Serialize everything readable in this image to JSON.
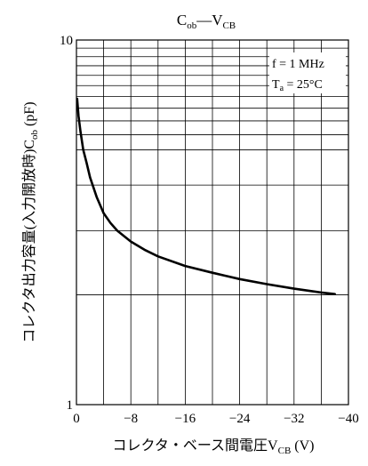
{
  "chart_data": {
    "type": "line",
    "title": {
      "main": "C",
      "main_sub": "ob",
      "sep": "—",
      "second": "V",
      "second_sub": "CB"
    },
    "xlabel": {
      "text": "コレクタ・ベース間電圧",
      "var": "V",
      "var_sub": "CB",
      "unit": "(V)"
    },
    "ylabel": {
      "text": "コレクタ出力容量(入力開放時)",
      "var": "C",
      "var_sub": "ob",
      "unit": "(pF)"
    },
    "annotation": {
      "line1": "f = 1 MHz",
      "line2_var": "T",
      "line2_sub": "a",
      "line2_rest": " = 25°C"
    },
    "x_ticks": [
      "0",
      "−8",
      "−16",
      "−24",
      "−32",
      "−40"
    ],
    "y_ticks": [
      "10",
      "1"
    ],
    "x_range": [
      0,
      -40
    ],
    "y_range": [
      1,
      10
    ],
    "y_scale": "log",
    "grid": true,
    "series": [
      {
        "x": [
          -0.1,
          -0.3,
          -0.6,
          -1,
          -1.5,
          -2,
          -3,
          -4,
          -5,
          -6,
          -8,
          -10,
          -12,
          -16,
          -20,
          -24,
          -28,
          -32,
          -36,
          -38
        ],
        "y": [
          6.9,
          6.2,
          5.6,
          5.0,
          4.6,
          4.2,
          3.7,
          3.35,
          3.15,
          3.0,
          2.8,
          2.66,
          2.55,
          2.4,
          2.3,
          2.21,
          2.14,
          2.08,
          2.03,
          2.01
        ]
      }
    ]
  }
}
